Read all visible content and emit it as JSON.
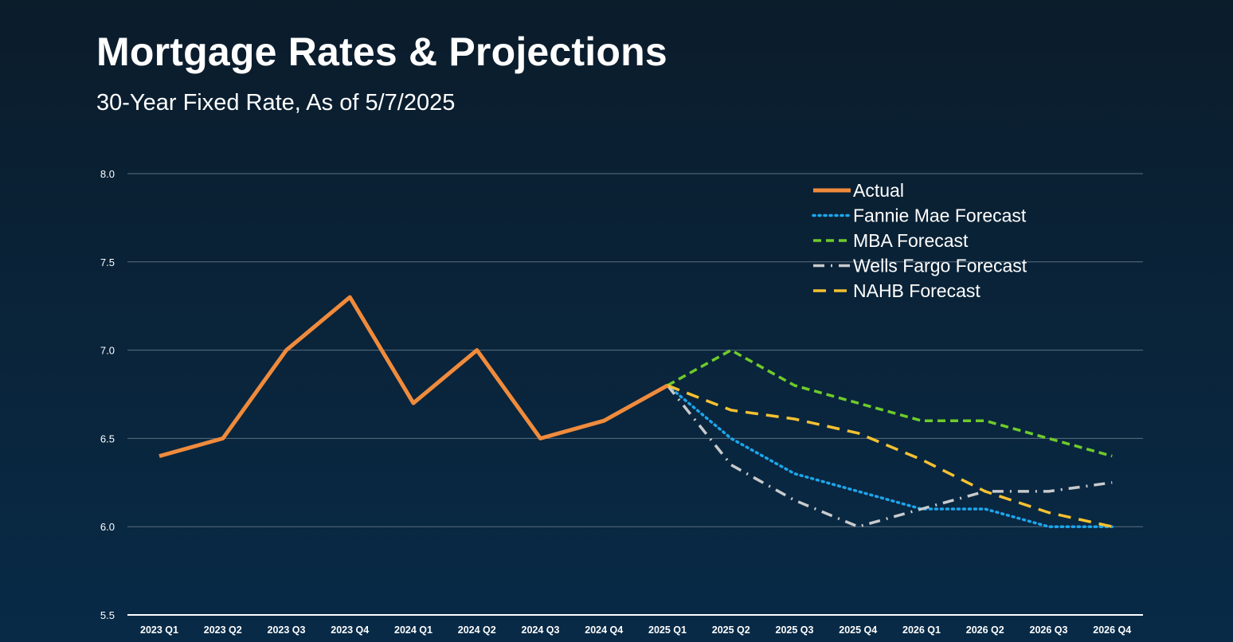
{
  "title": "Mortgage Rates & Projections",
  "subtitle": "30-Year Fixed Rate, As of 5/7/2025",
  "chart_data": {
    "type": "line",
    "title": "Mortgage Rates & Projections",
    "subtitle": "30-Year Fixed Rate, As of 5/7/2025",
    "xlabel": "",
    "ylabel": "",
    "categories": [
      "2023 Q1",
      "2023 Q2",
      "2023 Q3",
      "2023 Q4",
      "2024 Q1",
      "2024 Q2",
      "2024 Q3",
      "2024 Q4",
      "2025 Q1",
      "2025 Q2",
      "2025 Q3",
      "2025 Q4",
      "2026 Q1",
      "2026 Q2",
      "2026 Q3",
      "2026 Q4"
    ],
    "ylim": [
      5.5,
      8.0
    ],
    "yticks": [
      "5.5",
      "6.0",
      "6.5",
      "7.0",
      "7.5",
      "8.0"
    ],
    "grid": true,
    "legend_position": "top-right",
    "series": [
      {
        "name": "Actual",
        "color": "#f08b3c",
        "style": "solid",
        "values": [
          6.4,
          6.5,
          7.0,
          7.3,
          6.7,
          7.0,
          6.5,
          6.6,
          6.8,
          null,
          null,
          null,
          null,
          null,
          null,
          null
        ]
      },
      {
        "name": "Fannie Mae Forecast",
        "color": "#1ca6ec",
        "style": "dotted",
        "values": [
          null,
          null,
          null,
          null,
          null,
          null,
          null,
          null,
          6.8,
          6.5,
          6.3,
          6.2,
          6.1,
          6.1,
          6.0,
          6.0
        ]
      },
      {
        "name": "MBA Forecast",
        "color": "#6ecb2a",
        "style": "dashed",
        "values": [
          null,
          null,
          null,
          null,
          null,
          null,
          null,
          null,
          6.8,
          7.0,
          6.8,
          6.7,
          6.6,
          6.6,
          6.5,
          6.4
        ]
      },
      {
        "name": "Wells Fargo Forecast",
        "color": "#c8cacc",
        "style": "dashdot",
        "values": [
          null,
          null,
          null,
          null,
          null,
          null,
          null,
          null,
          6.8,
          6.35,
          6.15,
          6.0,
          6.1,
          6.2,
          6.2,
          6.25
        ]
      },
      {
        "name": "NAHB Forecast",
        "color": "#f5c131",
        "style": "longdash",
        "values": [
          null,
          null,
          null,
          null,
          null,
          null,
          null,
          null,
          6.8,
          6.66,
          6.61,
          6.53,
          6.38,
          6.2,
          6.08,
          6.0
        ]
      }
    ]
  }
}
